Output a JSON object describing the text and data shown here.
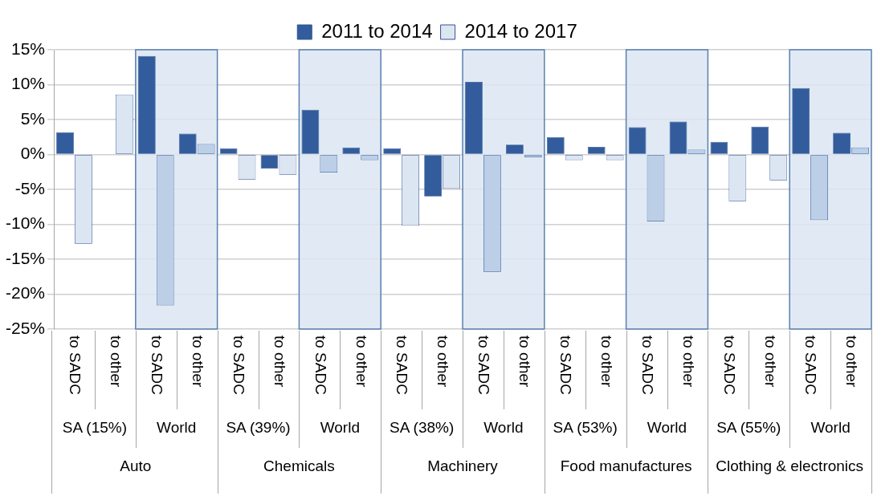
{
  "chart_data": {
    "type": "bar",
    "categories": [
      "to SADC",
      "to other",
      "to SADC",
      "to other",
      "to SADC",
      "to other",
      "to SADC",
      "to other",
      "to SADC",
      "to other",
      "to SADC",
      "to other",
      "to SADC",
      "to other",
      "to SADC",
      "to other",
      "to SADC",
      "to other",
      "to SADC",
      "to other"
    ],
    "series": [
      {
        "name": "2011 to 2014",
        "color": "#335c9c",
        "values": [
          3.2,
          0.0,
          14.1,
          3.0,
          0.9,
          -2.0,
          6.4,
          1.0,
          0.9,
          -6.0,
          10.4,
          1.4,
          2.5,
          1.1,
          3.9,
          4.7,
          1.8,
          4.0,
          9.5,
          3.1
        ]
      },
      {
        "name": "2014 to 2017",
        "color": "#dce6f2",
        "colors": [
          "#dce6f2",
          "#dce6f2",
          "#bccfe7",
          "#bccfe7",
          "#dce6f2",
          "#dce6f2",
          "#bccfe7",
          "#bccfe7",
          "#dce6f2",
          "#dce6f2",
          "#bccfe7",
          "#bccfe7",
          "#dce6f2",
          "#dce6f2",
          "#bccfe7",
          "#bccfe7",
          "#dce6f2",
          "#dce6f2",
          "#bccfe7",
          "#bccfe7"
        ],
        "values": [
          -12.8,
          8.6,
          -21.6,
          1.5,
          -3.6,
          -2.9,
          -2.6,
          -0.8,
          -10.2,
          -4.9,
          -16.8,
          -0.4,
          -0.8,
          -0.8,
          -9.6,
          0.7,
          -6.7,
          -3.7,
          -9.4,
          1.0
        ]
      }
    ],
    "ylim": [
      -25,
      15
    ],
    "yticks": [
      {
        "value": -25,
        "label": "-25%"
      },
      {
        "value": -20,
        "label": "-20%"
      },
      {
        "value": -15,
        "label": "-15%"
      },
      {
        "value": -10,
        "label": "-10%"
      },
      {
        "value": -5,
        "label": "-5%"
      },
      {
        "value": 0,
        "label": "0%"
      },
      {
        "value": 5,
        "label": "5%"
      },
      {
        "value": 10,
        "label": "10%"
      },
      {
        "value": 15,
        "label": "15%"
      }
    ],
    "grid": "y",
    "legend": "top",
    "annotations": [
      "SA (15%)",
      "World",
      "SA (39%)",
      "World",
      "SA (38%)",
      "World",
      "SA (53%)",
      "World",
      "SA (55%)",
      "World",
      "Auto",
      "Chemicals",
      "Machinery",
      "Food manufactures",
      "Clothing & electronics"
    ]
  }
}
